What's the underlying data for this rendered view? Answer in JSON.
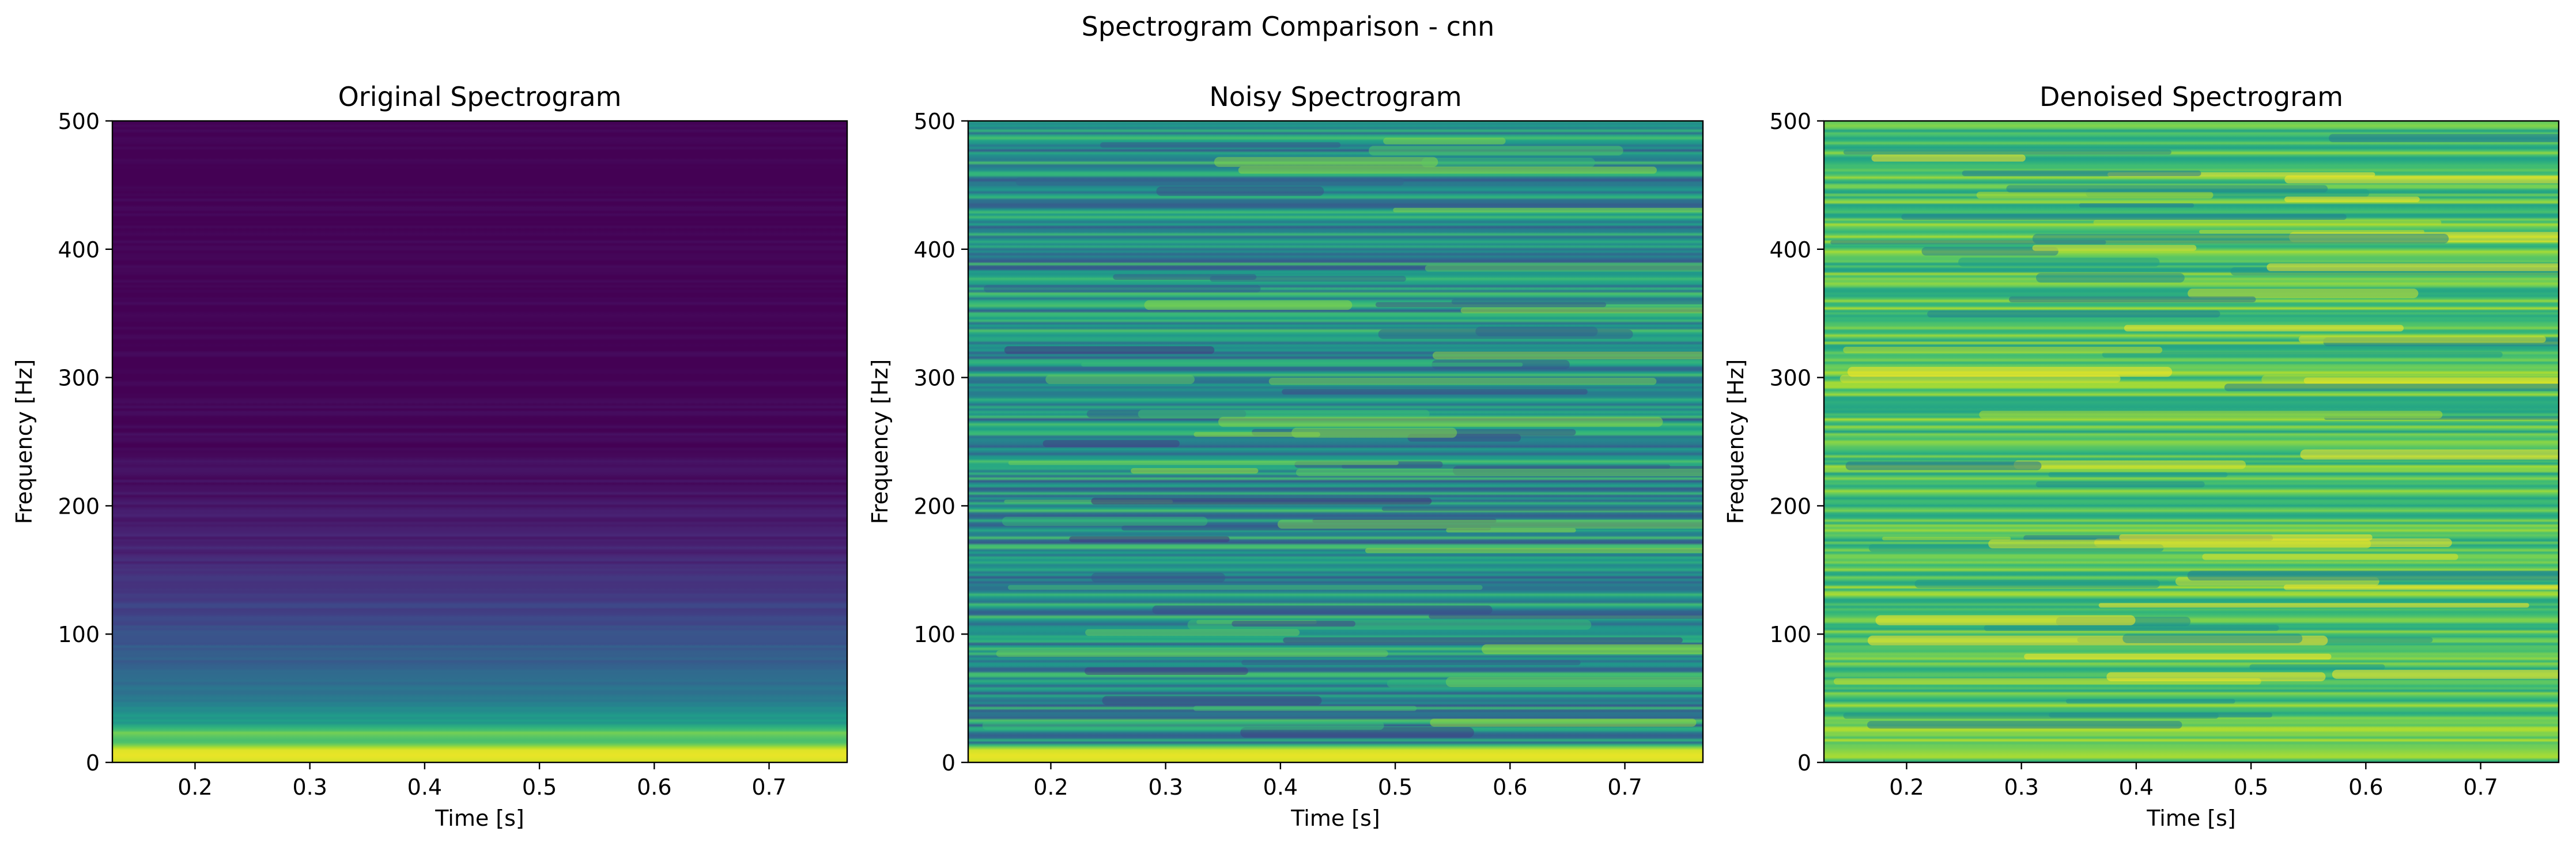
{
  "figure": {
    "suptitle": "Spectrogram Comparison - cnn",
    "colormap": "viridis",
    "colormap_stops": [
      "#440154",
      "#482878",
      "#3e4989",
      "#31688e",
      "#26828e",
      "#1f9e89",
      "#35b779",
      "#6ece58",
      "#b5de2b",
      "#fde725"
    ]
  },
  "chart_data": [
    {
      "type": "heatmap",
      "title": "Original Spectrogram",
      "xlabel": "Time [s]",
      "ylabel": "Frequency [Hz]",
      "xlim": [
        0.128,
        0.768
      ],
      "ylim": [
        0,
        500
      ],
      "xticks": [
        0.2,
        0.3,
        0.4,
        0.5,
        0.6,
        0.7
      ],
      "xtick_labels": [
        "0.2",
        "0.3",
        "0.4",
        "0.5",
        "0.6",
        "0.7"
      ],
      "yticks": [
        0,
        100,
        200,
        300,
        400,
        500
      ],
      "ytick_labels": [
        "0",
        "100",
        "200",
        "300",
        "400",
        "500"
      ],
      "grid": false,
      "bands": [
        {
          "f": 0,
          "level": 0.93
        },
        {
          "f": 5,
          "level": 0.97
        },
        {
          "f": 10,
          "level": 0.95
        },
        {
          "f": 16,
          "level": 0.68
        },
        {
          "f": 22,
          "level": 0.8
        },
        {
          "f": 30,
          "level": 0.55
        },
        {
          "f": 40,
          "level": 0.5
        },
        {
          "f": 50,
          "level": 0.4
        },
        {
          "f": 62,
          "level": 0.36
        },
        {
          "f": 75,
          "level": 0.3
        },
        {
          "f": 90,
          "level": 0.28
        },
        {
          "f": 105,
          "level": 0.24
        },
        {
          "f": 120,
          "level": 0.2
        },
        {
          "f": 135,
          "level": 0.17
        },
        {
          "f": 150,
          "level": 0.12
        },
        {
          "f": 165,
          "level": 0.1
        },
        {
          "f": 180,
          "level": 0.08
        },
        {
          "f": 200,
          "level": 0.06
        },
        {
          "f": 220,
          "level": 0.04
        },
        {
          "f": 250,
          "level": 0.02
        },
        {
          "f": 300,
          "level": 0.0
        },
        {
          "f": 500,
          "level": 0.0
        }
      ]
    },
    {
      "type": "heatmap",
      "title": "Noisy Spectrogram",
      "xlabel": "Time [s]",
      "ylabel": "Frequency [Hz]",
      "xlim": [
        0.128,
        0.768
      ],
      "ylim": [
        0,
        500
      ],
      "xticks": [
        0.2,
        0.3,
        0.4,
        0.5,
        0.6,
        0.7
      ],
      "xtick_labels": [
        "0.2",
        "0.3",
        "0.4",
        "0.5",
        "0.6",
        "0.7"
      ],
      "yticks": [
        0,
        100,
        200,
        300,
        400,
        500
      ],
      "ytick_labels": [
        "0",
        "100",
        "200",
        "300",
        "400",
        "500"
      ],
      "grid": false,
      "bands": [
        {
          "f": 0,
          "level": 0.93
        },
        {
          "f": 5,
          "level": 0.97
        },
        {
          "f": 10,
          "level": 0.93
        },
        {
          "f": 15,
          "level": 0.55
        },
        {
          "f": 28,
          "level": 0.5
        },
        {
          "f": 500,
          "level": 0.5
        }
      ]
    },
    {
      "type": "heatmap",
      "title": "Denoised Spectrogram",
      "xlabel": "Time [s]",
      "ylabel": "Frequency [Hz]",
      "xlim": [
        0.128,
        0.768
      ],
      "ylim": [
        0,
        500
      ],
      "xticks": [
        0.2,
        0.3,
        0.4,
        0.5,
        0.6,
        0.7
      ],
      "xtick_labels": [
        "0.2",
        "0.3",
        "0.4",
        "0.5",
        "0.6",
        "0.7"
      ],
      "yticks": [
        0,
        100,
        200,
        300,
        400,
        500
      ],
      "ytick_labels": [
        "0",
        "100",
        "200",
        "300",
        "400",
        "500"
      ],
      "grid": false,
      "bands": [
        {
          "f": 0,
          "level": 0.55
        },
        {
          "f": 4,
          "level": 0.88
        },
        {
          "f": 12,
          "level": 0.78
        },
        {
          "f": 30,
          "level": 0.72
        },
        {
          "f": 500,
          "level": 0.72
        }
      ]
    }
  ]
}
